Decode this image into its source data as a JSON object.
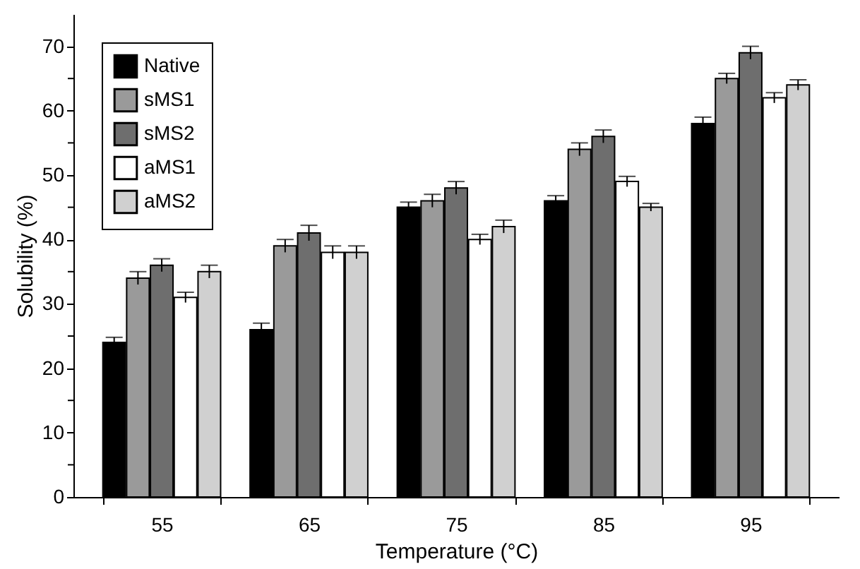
{
  "chart_data": {
    "type": "bar",
    "xlabel": "Temperature (°C)",
    "ylabel": "Solubility (%)",
    "categories": [
      "55",
      "65",
      "75",
      "85",
      "95"
    ],
    "series": [
      {
        "name": "Native",
        "color": "#000000",
        "values": [
          24,
          26,
          45,
          46,
          58
        ],
        "errors": [
          0.8,
          1,
          0.8,
          0.8,
          1
        ]
      },
      {
        "name": "sMS1",
        "color": "#9a9a9a",
        "values": [
          34,
          39,
          46,
          54,
          65
        ],
        "errors": [
          1,
          1,
          1,
          1,
          0.8
        ]
      },
      {
        "name": "sMS2",
        "color": "#6e6e6e",
        "values": [
          36,
          41,
          48,
          56,
          69
        ],
        "errors": [
          1,
          1.2,
          1,
          1,
          1
        ]
      },
      {
        "name": "aMS1",
        "color": "#ffffff",
        "values": [
          31,
          38,
          40,
          49,
          62
        ],
        "errors": [
          0.8,
          1,
          0.8,
          0.8,
          0.8
        ]
      },
      {
        "name": "aMS2",
        "color": "#d0d0d0",
        "values": [
          35,
          38,
          42,
          45,
          64
        ],
        "errors": [
          1,
          1,
          1,
          0.6,
          0.8
        ]
      }
    ],
    "ylim": [
      0,
      75
    ],
    "yticks": [
      0,
      {
        "value": 5,
        "label": null
      },
      10,
      {
        "value": 15,
        "label": null
      },
      20,
      {
        "value": 25,
        "label": null
      },
      30,
      {
        "value": 35,
        "label": null
      },
      40,
      {
        "value": 45,
        "label": null
      },
      50,
      {
        "value": 55,
        "label": null
      },
      60,
      {
        "value": 65,
        "label": null
      },
      70
    ],
    "grid": false,
    "legend": "top left"
  }
}
